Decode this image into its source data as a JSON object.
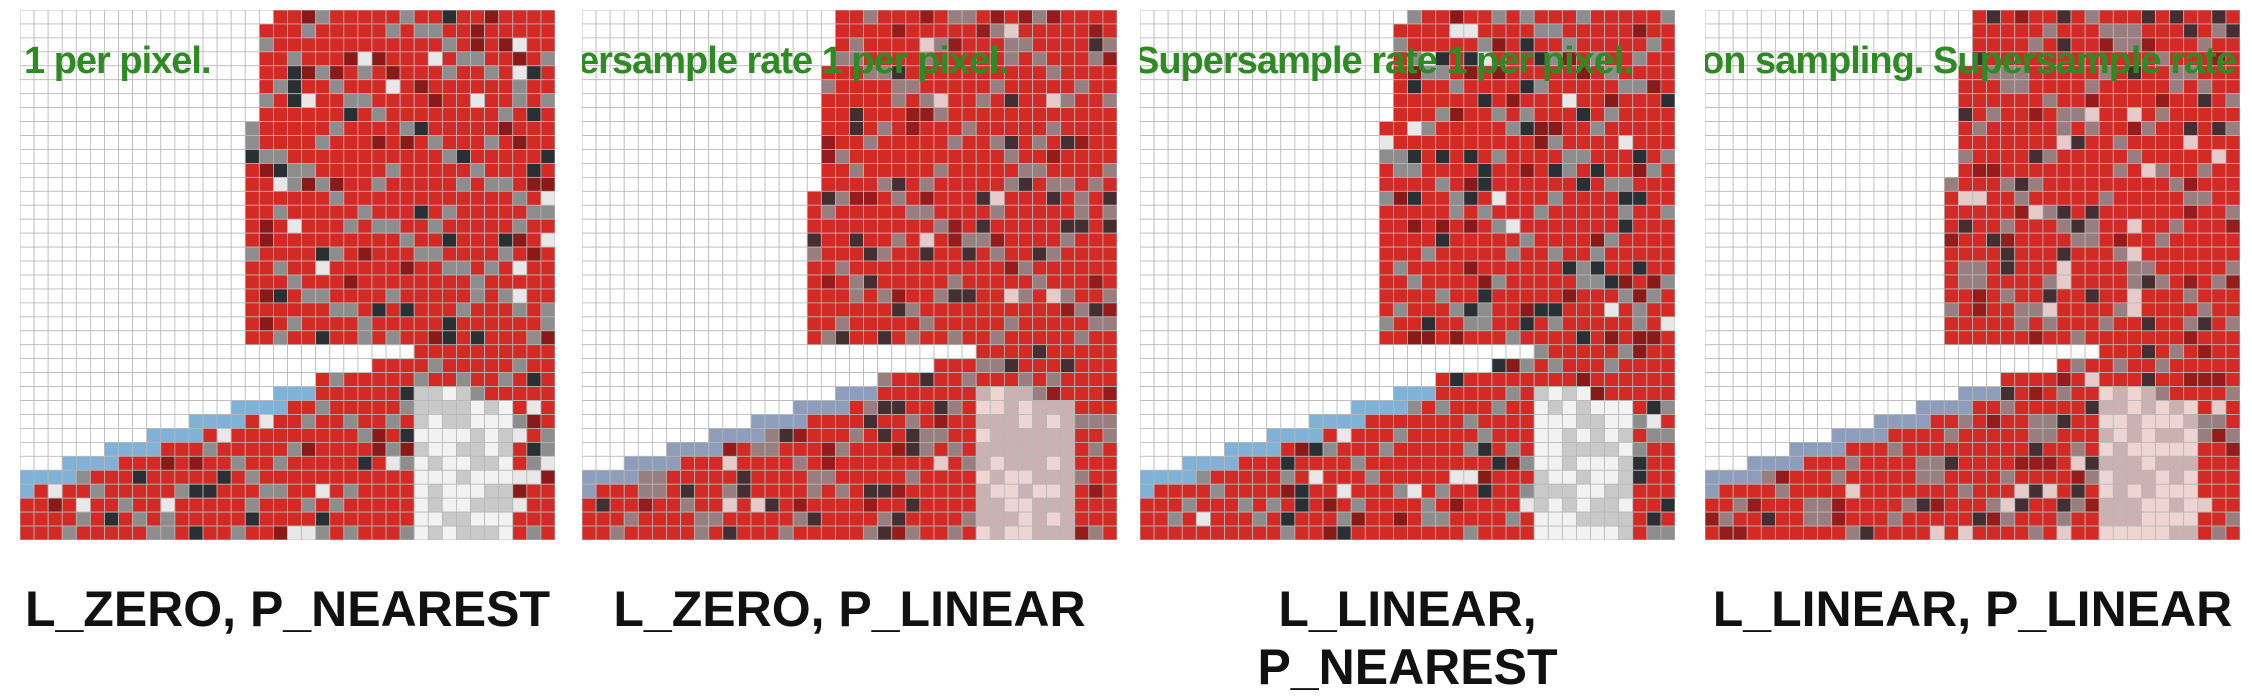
{
  "panels": [
    {
      "overlay_text": "1 per pixel.",
      "caption": "L_ZERO, P_NEAREST",
      "sampling": "nearest"
    },
    {
      "overlay_text": "ersample rate 1 per pixel.",
      "caption": "L_ZERO, P_LINEAR",
      "sampling": "linear"
    },
    {
      "overlay_text": "Supersample rate 1 per pixel.",
      "caption": "L_LINEAR, P_NEAREST",
      "sampling": "nearest"
    },
    {
      "overlay_text": "on sampling. Supersample rate 1",
      "caption": "L_LINEAR, P_LINEAR",
      "sampling": "linear"
    }
  ],
  "colors": {
    "red": "#d42a26",
    "dark_red": "#8a1a18",
    "gray": "#8d8d8d",
    "dark": "#2a2f33",
    "blue": "#7fb2d6",
    "white": "#ffffff",
    "grid": "#b8b8b8",
    "text_green": "#2e8b24"
  }
}
